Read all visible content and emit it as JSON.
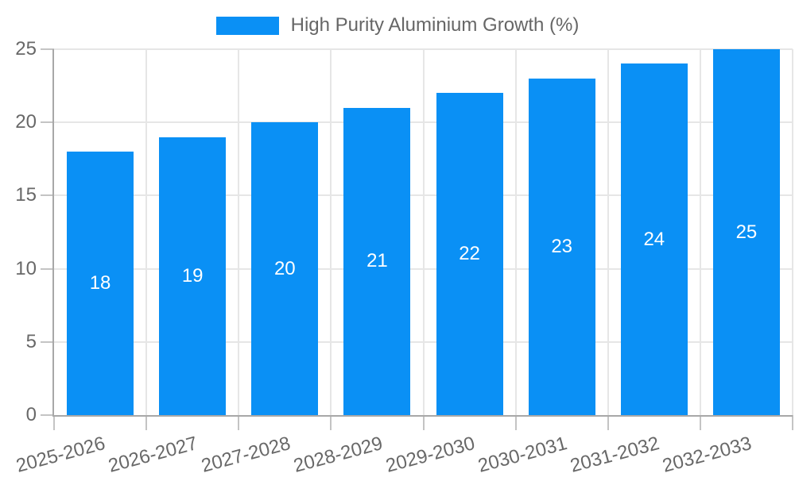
{
  "chart_data": {
    "type": "bar",
    "title": "",
    "legend_position": "top",
    "categories": [
      "2025-2026",
      "2026-2027",
      "2027-2028",
      "2028-2029",
      "2029-2030",
      "2030-2031",
      "2031-2032",
      "2032-2033"
    ],
    "series": [
      {
        "name": "High Purity Aluminium Growth (%)",
        "color": "#0a90f5",
        "values": [
          18,
          19,
          20,
          21,
          22,
          23,
          24,
          25
        ]
      }
    ],
    "bar_value_labels_shown": true,
    "xlabel": "",
    "ylabel": "",
    "ylim": [
      0,
      25
    ],
    "yticks": [
      0,
      5,
      10,
      15,
      20,
      25
    ],
    "ytick_step": 5,
    "grid": true,
    "x_label_rotation_deg": -15
  },
  "colors": {
    "bar": "#0a90f5",
    "grid": "#e6e6e6",
    "axis": "#a8a8a8",
    "tick": "#c4c4c4",
    "tick_text": "#686868",
    "legend_text": "#666666",
    "value_label": "#ffffff",
    "background": "#ffffff"
  }
}
